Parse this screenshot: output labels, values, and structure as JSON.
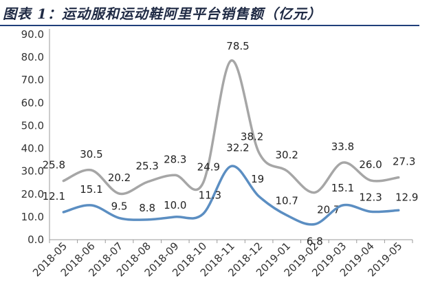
{
  "title": "图表 1：运动服和运动鞋阿里平台销售额（亿元）",
  "chart_data": {
    "type": "line",
    "title": "图表 1：运动服和运动鞋阿里平台销售额（亿元）",
    "xlabel": "",
    "ylabel": "",
    "ylim": [
      0,
      90
    ],
    "yticks": [
      "0.0",
      "10.0",
      "20.0",
      "30.0",
      "40.0",
      "50.0",
      "60.0",
      "70.0",
      "80.0",
      "90.0"
    ],
    "grid": false,
    "legend": "none",
    "categories": [
      "2018-05",
      "2018-06",
      "2018-07",
      "2018-08",
      "2018-09",
      "2018-10",
      "2018-11",
      "2018-12",
      "2019-01",
      "2019-02",
      "2019-03",
      "2019-04",
      "2019-05"
    ],
    "series": [
      {
        "color": "#a6a6a6",
        "values": [
          25.8,
          30.5,
          20.2,
          25.3,
          28.3,
          24.9,
          78.5,
          38.2,
          30.2,
          20.7,
          33.8,
          26.0,
          27.3
        ],
        "labels": [
          "25.8",
          "30.5",
          "20.2",
          "25.3",
          "28.3",
          "24.9",
          "78.5",
          "38.2",
          "30.2",
          "20.7",
          "33.8",
          "26.0",
          "27.3"
        ]
      },
      {
        "color": "#5b8ec2",
        "values": [
          12.1,
          15.1,
          9.5,
          8.8,
          10.0,
          11.3,
          32.2,
          19,
          10.7,
          6.8,
          15.1,
          12.3,
          12.9
        ],
        "labels": [
          "12.1",
          "15.1",
          "9.5",
          "8.8",
          "10.0",
          "11.3",
          "32.2",
          "19",
          "10.7",
          "6.8",
          "15.1",
          "12.3",
          "12.9"
        ]
      }
    ]
  }
}
